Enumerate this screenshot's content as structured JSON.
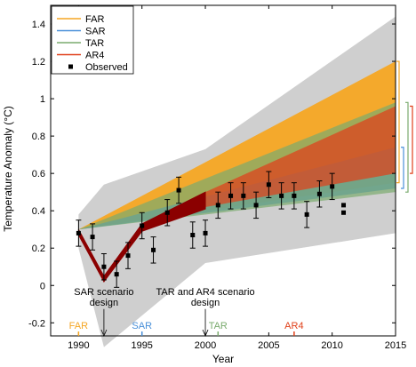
{
  "chart_data": {
    "type": "area",
    "title": "",
    "xlabel": "Year",
    "ylabel": "Temperature Anomaly (°C)",
    "xlim": [
      1987.8,
      2015
    ],
    "ylim": [
      -0.27,
      1.5
    ],
    "x_ticks": [
      1990,
      1995,
      2000,
      2005,
      2010,
      2015
    ],
    "x_tick_labels": [
      "1990",
      "1995",
      "2000",
      "2005",
      "2010",
      "2015"
    ],
    "y_ticks": [
      -0.2,
      0,
      0.2,
      0.4,
      0.6,
      0.8,
      1,
      1.2,
      1.4
    ],
    "y_tick_labels": [
      "-0.2",
      "0",
      "0.2",
      "0.4",
      "0.6",
      "0.8",
      "1",
      "1.2",
      "1.4"
    ],
    "grid": false,
    "legend_position": "top-left",
    "legend": [
      {
        "label": "FAR",
        "color": "#f5a623",
        "marker": "line"
      },
      {
        "label": "SAR",
        "color": "#4a90d9",
        "marker": "line"
      },
      {
        "label": "TAR",
        "color": "#7aab6e",
        "marker": "line"
      },
      {
        "label": "AR4",
        "color": "#e0401a",
        "marker": "line"
      },
      {
        "label": "Observed",
        "color": "#000000",
        "marker": "square"
      }
    ],
    "envelope": {
      "color": "#cfcfcf",
      "x": [
        1990,
        1992,
        2000,
        2015
      ],
      "upper": [
        0.38,
        0.54,
        0.73,
        1.44
      ],
      "lower": [
        0.2,
        -0.33,
        0.12,
        0.28
      ]
    },
    "series": [
      {
        "name": "FAR",
        "color": "#f5a623",
        "x": [
          1990,
          2015
        ],
        "upper": [
          0.3,
          1.2
        ],
        "lower": [
          0.3,
          0.55
        ]
      },
      {
        "name": "SAR",
        "color": "#4a90d9",
        "x": [
          1990,
          2015
        ],
        "upper": [
          0.3,
          0.74
        ],
        "lower": [
          0.3,
          0.52
        ]
      },
      {
        "name": "TAR",
        "color": "#7aab6e",
        "x": [
          1990,
          2015
        ],
        "upper": [
          0.3,
          0.98
        ],
        "lower": [
          0.3,
          0.5
        ]
      },
      {
        "name": "AR4",
        "color": "#e0401a",
        "x": [
          2000,
          2015
        ],
        "upper": [
          0.5,
          0.96
        ],
        "lower": [
          0.42,
          0.6
        ]
      }
    ],
    "dark_path": {
      "color": "#8b0000",
      "x": [
        1990,
        1992,
        1995,
        2000
      ],
      "upper": [
        0.3,
        0.05,
        0.33,
        0.5
      ],
      "lower": [
        0.27,
        0.02,
        0.29,
        0.41
      ]
    },
    "observed": [
      {
        "x": 1990.0,
        "y": 0.28,
        "err": 0.07
      },
      {
        "x": 1991.1,
        "y": 0.26,
        "err": 0.07
      },
      {
        "x": 1992.0,
        "y": 0.1,
        "err": 0.07
      },
      {
        "x": 1993.0,
        "y": 0.06,
        "err": 0.07
      },
      {
        "x": 1993.9,
        "y": 0.16,
        "err": 0.07
      },
      {
        "x": 1995.0,
        "y": 0.32,
        "err": 0.07
      },
      {
        "x": 1995.9,
        "y": 0.19,
        "err": 0.07
      },
      {
        "x": 1997.0,
        "y": 0.39,
        "err": 0.07
      },
      {
        "x": 1997.9,
        "y": 0.51,
        "err": 0.07
      },
      {
        "x": 1999.0,
        "y": 0.27,
        "err": 0.07
      },
      {
        "x": 2000.0,
        "y": 0.28,
        "err": 0.07
      },
      {
        "x": 2001.0,
        "y": 0.43,
        "err": 0.07
      },
      {
        "x": 2002.0,
        "y": 0.48,
        "err": 0.07
      },
      {
        "x": 2003.0,
        "y": 0.48,
        "err": 0.07
      },
      {
        "x": 2004.0,
        "y": 0.43,
        "err": 0.07
      },
      {
        "x": 2005.0,
        "y": 0.54,
        "err": 0.07
      },
      {
        "x": 2006.0,
        "y": 0.48,
        "err": 0.07
      },
      {
        "x": 2007.0,
        "y": 0.48,
        "err": 0.07
      },
      {
        "x": 2008.0,
        "y": 0.38,
        "err": 0.07
      },
      {
        "x": 2009.0,
        "y": 0.49,
        "err": 0.07
      },
      {
        "x": 2010.0,
        "y": 0.53,
        "err": 0.07
      },
      {
        "x": 2010.9,
        "y": 0.43,
        "err": 0
      },
      {
        "x": 2010.9,
        "y": 0.39,
        "err": 0
      }
    ],
    "annotations": [
      {
        "id": "sar-design",
        "lines": [
          "SAR scenario",
          "design"
        ],
        "x": 1992,
        "y": -0.05,
        "arrow_to_y": -0.27
      },
      {
        "id": "tar-ar4-design",
        "lines": [
          "TAR and AR4 scenario",
          "design"
        ],
        "x": 2000,
        "y": -0.05,
        "arrow_to_y": -0.27
      }
    ],
    "report_markers": [
      {
        "label": "FAR",
        "x": 1990,
        "color": "#f5a623"
      },
      {
        "label": "SAR",
        "x": 1995,
        "color": "#4a90d9"
      },
      {
        "label": "TAR",
        "x": 2001,
        "color": "#7aab6e"
      },
      {
        "label": "AR4",
        "x": 2007,
        "color": "#e0401a"
      }
    ],
    "right_brackets": [
      {
        "name": "FAR",
        "color": "#f5a623",
        "y_range": [
          0.55,
          1.2
        ]
      },
      {
        "name": "SAR",
        "color": "#4a90d9",
        "y_range": [
          0.52,
          0.74
        ]
      },
      {
        "name": "TAR",
        "color": "#7aab6e",
        "y_range": [
          0.5,
          0.98
        ]
      },
      {
        "name": "AR4",
        "color": "#e0401a",
        "y_range": [
          0.6,
          0.96
        ]
      }
    ]
  }
}
